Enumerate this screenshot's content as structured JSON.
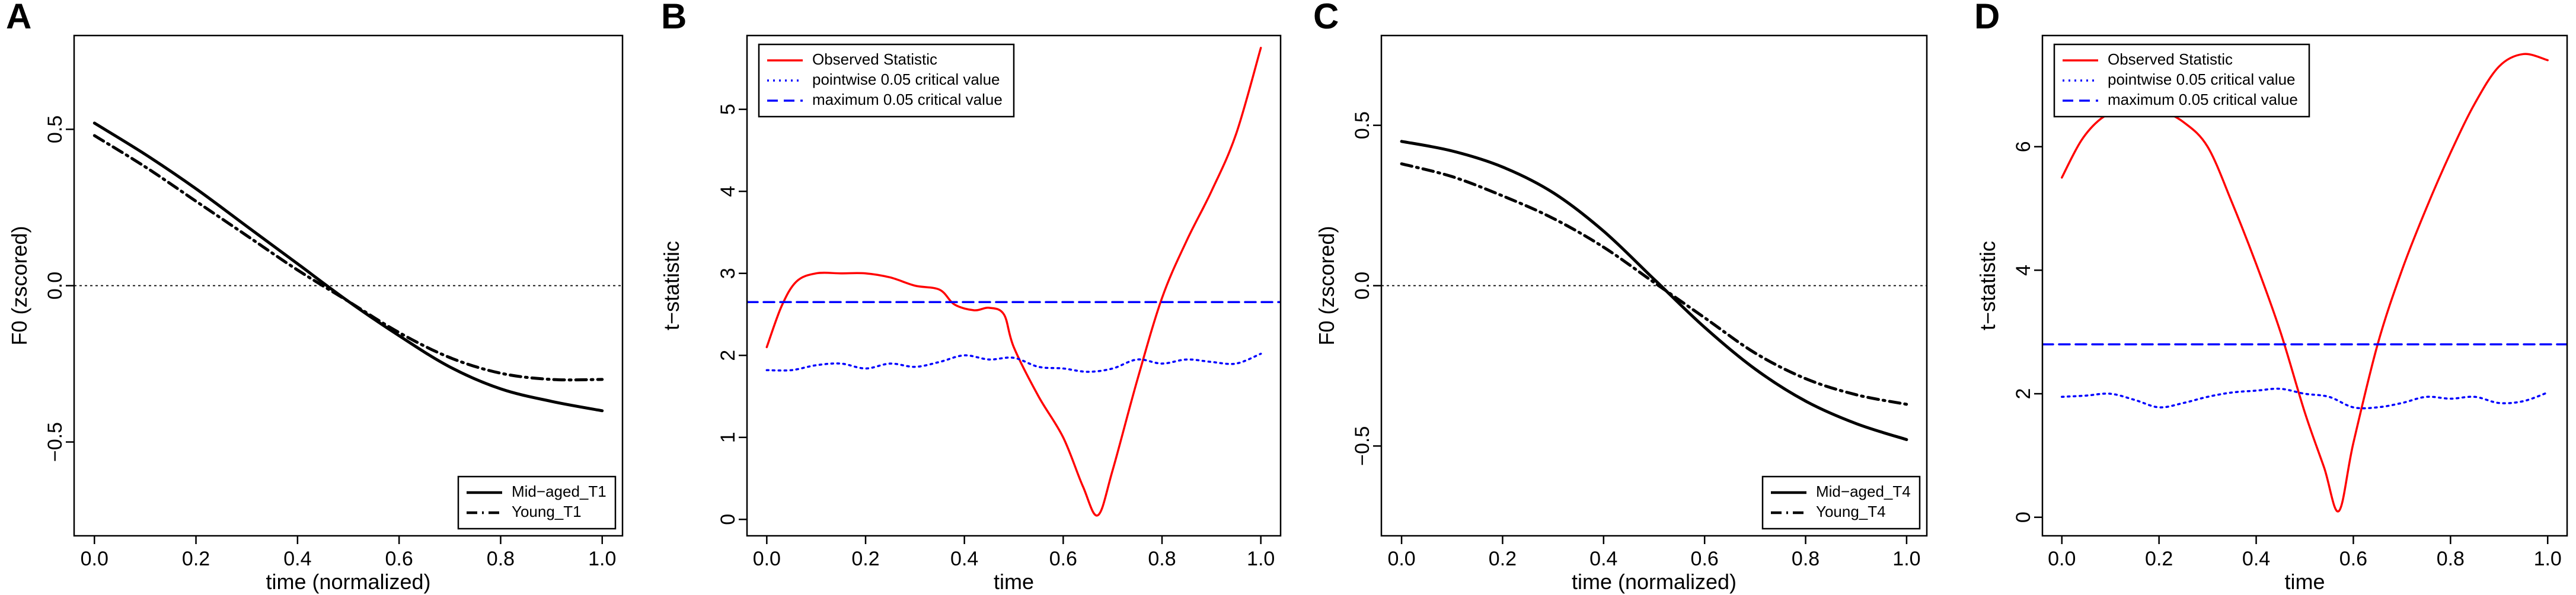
{
  "chart_data": [
    {
      "panel": "A",
      "type": "line",
      "xlabel": "time (normalized)",
      "ylabel": "F0 (zscored)",
      "xlim": [
        -0.04,
        1.04
      ],
      "ylim": [
        -0.8,
        0.8
      ],
      "xticks": [
        0.0,
        0.2,
        0.4,
        0.6,
        0.8,
        1.0
      ],
      "xtick_labels": [
        "0.0",
        "0.2",
        "0.4",
        "0.6",
        "0.8",
        "1.0"
      ],
      "yticks": [
        -0.5,
        0.0,
        0.5
      ],
      "ytick_labels": [
        "−0.5",
        "0.0",
        "0.5"
      ],
      "reference_line": 0.0,
      "legend_position": "bottom-right",
      "series": [
        {
          "name": "Mid−aged_T1",
          "style": "solid",
          "color": "#000000",
          "x": [
            0.0,
            0.1,
            0.2,
            0.3,
            0.4,
            0.5,
            0.6,
            0.7,
            0.8,
            0.9,
            1.0
          ],
          "y": [
            0.52,
            0.42,
            0.31,
            0.19,
            0.07,
            -0.05,
            -0.16,
            -0.26,
            -0.33,
            -0.37,
            -0.4
          ]
        },
        {
          "name": "Young_T1",
          "style": "dotdash",
          "color": "#000000",
          "x": [
            0.0,
            0.1,
            0.2,
            0.3,
            0.4,
            0.5,
            0.6,
            0.7,
            0.8,
            0.9,
            1.0
          ],
          "y": [
            0.48,
            0.38,
            0.27,
            0.16,
            0.05,
            -0.05,
            -0.15,
            -0.23,
            -0.28,
            -0.3,
            -0.3
          ]
        }
      ]
    },
    {
      "panel": "B",
      "type": "line",
      "xlabel": "time",
      "ylabel": "t−statistic",
      "xlim": [
        -0.04,
        1.04
      ],
      "ylim": [
        -0.2,
        5.9
      ],
      "xticks": [
        0.0,
        0.2,
        0.4,
        0.6,
        0.8,
        1.0
      ],
      "xtick_labels": [
        "0.0",
        "0.2",
        "0.4",
        "0.6",
        "0.8",
        "1.0"
      ],
      "yticks": [
        0,
        1,
        2,
        3,
        4,
        5
      ],
      "ytick_labels": [
        "0",
        "1",
        "2",
        "3",
        "4",
        "5"
      ],
      "legend_position": "top-left",
      "series": [
        {
          "name": "Observed Statistic",
          "style": "solid",
          "color": "#ff0000",
          "x": [
            0.0,
            0.03,
            0.06,
            0.1,
            0.15,
            0.2,
            0.25,
            0.3,
            0.35,
            0.38,
            0.42,
            0.45,
            0.48,
            0.5,
            0.55,
            0.6,
            0.64,
            0.67,
            0.7,
            0.75,
            0.8,
            0.85,
            0.9,
            0.95,
            1.0
          ],
          "y": [
            2.1,
            2.6,
            2.9,
            3.0,
            3.0,
            3.0,
            2.95,
            2.85,
            2.8,
            2.62,
            2.55,
            2.58,
            2.5,
            2.1,
            1.5,
            1.0,
            0.4,
            0.05,
            0.6,
            1.7,
            2.7,
            3.4,
            4.0,
            4.7,
            5.75
          ]
        },
        {
          "name": "pointwise 0.05 critical value",
          "style": "dotted",
          "color": "#0000ff",
          "x": [
            0.0,
            0.05,
            0.1,
            0.15,
            0.2,
            0.25,
            0.3,
            0.35,
            0.4,
            0.45,
            0.5,
            0.55,
            0.6,
            0.65,
            0.7,
            0.75,
            0.8,
            0.85,
            0.9,
            0.95,
            1.0
          ],
          "y": [
            1.82,
            1.82,
            1.88,
            1.9,
            1.84,
            1.9,
            1.86,
            1.92,
            2.0,
            1.95,
            1.97,
            1.86,
            1.84,
            1.8,
            1.84,
            1.95,
            1.9,
            1.95,
            1.92,
            1.9,
            2.02
          ]
        },
        {
          "name": "maximum 0.05 critical value",
          "style": "dashed",
          "color": "#0000ff",
          "x": [
            -0.04,
            1.04
          ],
          "y": [
            2.65,
            2.65
          ]
        }
      ]
    },
    {
      "panel": "C",
      "type": "line",
      "xlabel": "time (normalized)",
      "ylabel": "F0 (zscored)",
      "xlim": [
        -0.04,
        1.04
      ],
      "ylim": [
        -0.78,
        0.78
      ],
      "xticks": [
        0.0,
        0.2,
        0.4,
        0.6,
        0.8,
        1.0
      ],
      "xtick_labels": [
        "0.0",
        "0.2",
        "0.4",
        "0.6",
        "0.8",
        "1.0"
      ],
      "yticks": [
        -0.5,
        0.0,
        0.5
      ],
      "ytick_labels": [
        "−0.5",
        "0.0",
        "0.5"
      ],
      "reference_line": 0.0,
      "legend_position": "bottom-right",
      "series": [
        {
          "name": "Mid−aged_T4",
          "style": "solid",
          "color": "#000000",
          "x": [
            0.0,
            0.1,
            0.2,
            0.3,
            0.4,
            0.5,
            0.6,
            0.7,
            0.8,
            0.9,
            1.0
          ],
          "y": [
            0.45,
            0.42,
            0.37,
            0.29,
            0.17,
            0.02,
            -0.13,
            -0.26,
            -0.36,
            -0.43,
            -0.48
          ]
        },
        {
          "name": "Young_T4",
          "style": "dotdash",
          "color": "#000000",
          "x": [
            0.0,
            0.1,
            0.2,
            0.3,
            0.4,
            0.5,
            0.6,
            0.7,
            0.8,
            0.9,
            1.0
          ],
          "y": [
            0.38,
            0.34,
            0.28,
            0.21,
            0.12,
            0.01,
            -0.1,
            -0.21,
            -0.29,
            -0.34,
            -0.37
          ]
        }
      ]
    },
    {
      "panel": "D",
      "type": "line",
      "xlabel": "time",
      "ylabel": "t−statistic",
      "xlim": [
        -0.04,
        1.04
      ],
      "ylim": [
        -0.3,
        7.8
      ],
      "xticks": [
        0.0,
        0.2,
        0.4,
        0.6,
        0.8,
        1.0
      ],
      "xtick_labels": [
        "0.0",
        "0.2",
        "0.4",
        "0.6",
        "0.8",
        "1.0"
      ],
      "yticks": [
        0,
        2,
        4,
        6
      ],
      "ytick_labels": [
        "0",
        "2",
        "4",
        "6"
      ],
      "legend_position": "top-left",
      "series": [
        {
          "name": "Observed Statistic",
          "style": "solid",
          "color": "#ff0000",
          "x": [
            0.0,
            0.04,
            0.08,
            0.12,
            0.16,
            0.2,
            0.25,
            0.3,
            0.35,
            0.4,
            0.45,
            0.5,
            0.54,
            0.57,
            0.6,
            0.65,
            0.7,
            0.75,
            0.8,
            0.85,
            0.9,
            0.95,
            1.0
          ],
          "y": [
            5.5,
            6.1,
            6.45,
            6.6,
            6.65,
            6.6,
            6.4,
            6.0,
            5.1,
            4.1,
            3.0,
            1.7,
            0.8,
            0.1,
            1.2,
            2.8,
            4.0,
            5.0,
            5.9,
            6.7,
            7.3,
            7.5,
            7.4
          ]
        },
        {
          "name": "pointwise 0.05 critical value",
          "style": "dotted",
          "color": "#0000ff",
          "x": [
            0.0,
            0.05,
            0.1,
            0.15,
            0.2,
            0.25,
            0.3,
            0.35,
            0.4,
            0.45,
            0.5,
            0.55,
            0.6,
            0.65,
            0.7,
            0.75,
            0.8,
            0.85,
            0.9,
            0.95,
            1.0
          ],
          "y": [
            1.95,
            1.97,
            2.0,
            1.9,
            1.78,
            1.85,
            1.95,
            2.02,
            2.05,
            2.08,
            2.0,
            1.95,
            1.78,
            1.78,
            1.85,
            1.95,
            1.92,
            1.95,
            1.85,
            1.88,
            2.02
          ]
        },
        {
          "name": "maximum 0.05 critical value",
          "style": "dashed",
          "color": "#0000ff",
          "x": [
            -0.04,
            1.04
          ],
          "y": [
            2.8,
            2.8
          ]
        }
      ]
    }
  ]
}
